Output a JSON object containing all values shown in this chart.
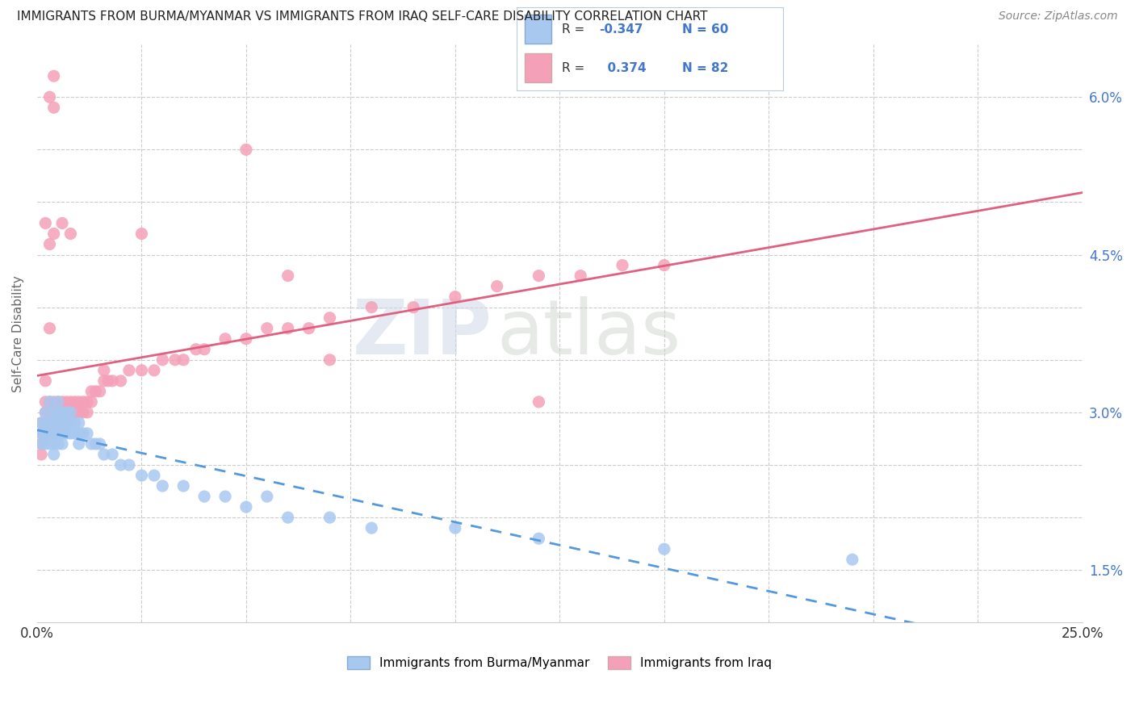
{
  "title": "IMMIGRANTS FROM BURMA/MYANMAR VS IMMIGRANTS FROM IRAQ SELF-CARE DISABILITY CORRELATION CHART",
  "source": "Source: ZipAtlas.com",
  "ylabel": "Self-Care Disability",
  "xlim": [
    0.0,
    0.25
  ],
  "ylim": [
    0.01,
    0.065
  ],
  "burma_color": "#a8c8f0",
  "iraq_color": "#f4a0b8",
  "burma_line_color": "#5599dd",
  "iraq_line_color": "#e06080",
  "legend_R_color": "#4477cc",
  "burma_R": -0.347,
  "burma_N": 60,
  "iraq_R": 0.374,
  "iraq_N": 82,
  "burma_x": [
    0.001,
    0.001,
    0.001,
    0.002,
    0.002,
    0.002,
    0.002,
    0.003,
    0.003,
    0.003,
    0.003,
    0.004,
    0.004,
    0.004,
    0.004,
    0.004,
    0.005,
    0.005,
    0.005,
    0.005,
    0.005,
    0.006,
    0.006,
    0.006,
    0.006,
    0.007,
    0.007,
    0.007,
    0.008,
    0.008,
    0.008,
    0.009,
    0.009,
    0.01,
    0.01,
    0.01,
    0.011,
    0.012,
    0.013,
    0.014,
    0.015,
    0.016,
    0.018,
    0.02,
    0.022,
    0.025,
    0.028,
    0.03,
    0.035,
    0.04,
    0.045,
    0.05,
    0.055,
    0.06,
    0.07,
    0.08,
    0.1,
    0.12,
    0.15,
    0.195
  ],
  "burma_y": [
    0.029,
    0.028,
    0.027,
    0.03,
    0.029,
    0.028,
    0.027,
    0.031,
    0.029,
    0.028,
    0.027,
    0.03,
    0.029,
    0.028,
    0.027,
    0.026,
    0.031,
    0.03,
    0.029,
    0.028,
    0.027,
    0.03,
    0.029,
    0.028,
    0.027,
    0.03,
    0.029,
    0.028,
    0.03,
    0.029,
    0.028,
    0.029,
    0.028,
    0.029,
    0.028,
    0.027,
    0.028,
    0.028,
    0.027,
    0.027,
    0.027,
    0.026,
    0.026,
    0.025,
    0.025,
    0.024,
    0.024,
    0.023,
    0.023,
    0.022,
    0.022,
    0.021,
    0.022,
    0.02,
    0.02,
    0.019,
    0.019,
    0.018,
    0.017,
    0.016
  ],
  "iraq_x": [
    0.001,
    0.001,
    0.001,
    0.001,
    0.002,
    0.002,
    0.002,
    0.002,
    0.003,
    0.003,
    0.003,
    0.003,
    0.004,
    0.004,
    0.004,
    0.004,
    0.005,
    0.005,
    0.005,
    0.005,
    0.006,
    0.006,
    0.006,
    0.007,
    0.007,
    0.007,
    0.008,
    0.008,
    0.009,
    0.009,
    0.01,
    0.01,
    0.011,
    0.011,
    0.012,
    0.012,
    0.013,
    0.013,
    0.014,
    0.015,
    0.016,
    0.017,
    0.018,
    0.02,
    0.022,
    0.025,
    0.028,
    0.03,
    0.033,
    0.035,
    0.038,
    0.04,
    0.045,
    0.05,
    0.055,
    0.06,
    0.065,
    0.07,
    0.08,
    0.09,
    0.1,
    0.11,
    0.12,
    0.13,
    0.14,
    0.15,
    0.008,
    0.006,
    0.004,
    0.003,
    0.025,
    0.05,
    0.004,
    0.003,
    0.002,
    0.003,
    0.004,
    0.016,
    0.06,
    0.07,
    0.002,
    0.12
  ],
  "iraq_y": [
    0.029,
    0.028,
    0.027,
    0.026,
    0.031,
    0.03,
    0.029,
    0.028,
    0.031,
    0.03,
    0.029,
    0.028,
    0.031,
    0.03,
    0.029,
    0.028,
    0.031,
    0.03,
    0.029,
    0.028,
    0.031,
    0.03,
    0.028,
    0.031,
    0.03,
    0.029,
    0.031,
    0.03,
    0.031,
    0.03,
    0.031,
    0.03,
    0.031,
    0.03,
    0.031,
    0.03,
    0.031,
    0.032,
    0.032,
    0.032,
    0.033,
    0.033,
    0.033,
    0.033,
    0.034,
    0.034,
    0.034,
    0.035,
    0.035,
    0.035,
    0.036,
    0.036,
    0.037,
    0.037,
    0.038,
    0.038,
    0.038,
    0.039,
    0.04,
    0.04,
    0.041,
    0.042,
    0.043,
    0.043,
    0.044,
    0.044,
    0.047,
    0.048,
    0.047,
    0.046,
    0.047,
    0.055,
    0.059,
    0.038,
    0.033,
    0.06,
    0.062,
    0.034,
    0.043,
    0.035,
    0.048,
    0.031
  ],
  "watermark_zip": "ZIP",
  "watermark_atlas": "atlas",
  "background_color": "#ffffff",
  "grid_color": "#cccccc",
  "tick_color": "#4477cc"
}
